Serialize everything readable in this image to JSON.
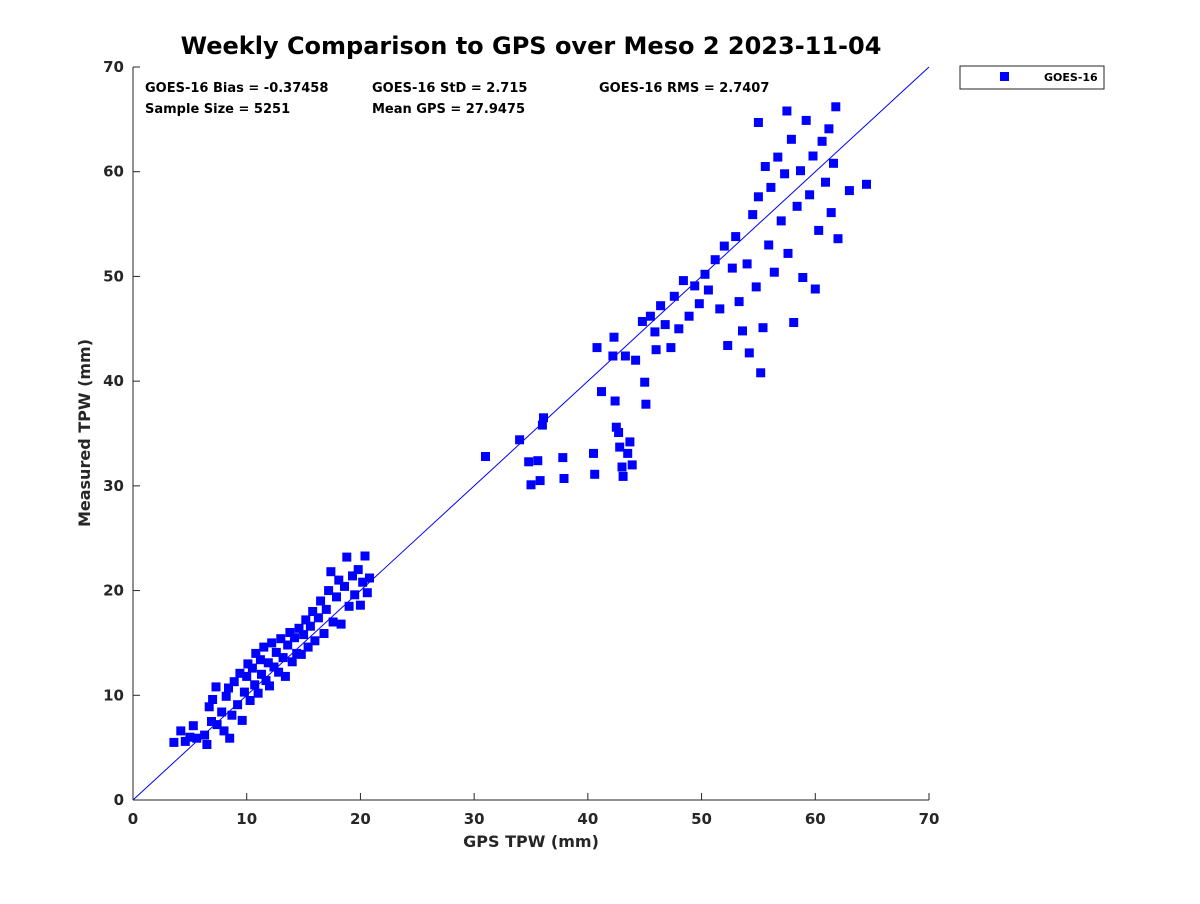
{
  "chart_data": {
    "type": "scatter",
    "title": "Weekly Comparison to GPS over Meso 2 2023-11-04",
    "xlabel": "GPS TPW (mm)",
    "ylabel": "Measured TPW (mm)",
    "xlim": [
      0,
      70
    ],
    "ylim": [
      0,
      70
    ],
    "xticks": [
      "0",
      "10",
      "20",
      "30",
      "40",
      "50",
      "60",
      "70"
    ],
    "yticks": [
      "0",
      "10",
      "20",
      "30",
      "40",
      "50",
      "60",
      "70"
    ],
    "grid": false,
    "legend_position": "outside-top-right",
    "stats": [
      "GOES-16 Bias = -0.37458",
      "GOES-16 StD = 2.715",
      "GOES-16 RMS = 2.7407",
      "Sample Size = 5251",
      "Mean GPS = 27.9475"
    ],
    "reference_line": {
      "from": [
        0,
        0
      ],
      "to": [
        70,
        70
      ],
      "color": "#0000ff"
    },
    "series": [
      {
        "name": "GOES-16",
        "marker": "square",
        "color": "#0000ff",
        "points": [
          [
            3.6,
            5.5
          ],
          [
            4.2,
            6.6
          ],
          [
            4.6,
            5.6
          ],
          [
            5.0,
            6.0
          ],
          [
            5.3,
            7.1
          ],
          [
            5.6,
            5.9
          ],
          [
            6.3,
            6.2
          ],
          [
            6.5,
            5.3
          ],
          [
            6.7,
            8.9
          ],
          [
            6.9,
            7.5
          ],
          [
            7.0,
            9.6
          ],
          [
            7.3,
            10.8
          ],
          [
            7.4,
            7.2
          ],
          [
            7.8,
            8.4
          ],
          [
            8.0,
            6.6
          ],
          [
            8.2,
            9.9
          ],
          [
            8.4,
            10.7
          ],
          [
            8.5,
            5.9
          ],
          [
            8.7,
            8.1
          ],
          [
            8.9,
            11.3
          ],
          [
            9.2,
            9.1
          ],
          [
            9.4,
            12.1
          ],
          [
            9.6,
            7.6
          ],
          [
            9.8,
            10.3
          ],
          [
            10.0,
            11.8
          ],
          [
            10.1,
            13.0
          ],
          [
            10.3,
            9.5
          ],
          [
            10.5,
            12.6
          ],
          [
            10.7,
            11.0
          ],
          [
            10.8,
            14.0
          ],
          [
            11.0,
            10.2
          ],
          [
            11.2,
            13.4
          ],
          [
            11.3,
            12.0
          ],
          [
            11.5,
            14.6
          ],
          [
            11.7,
            11.4
          ],
          [
            11.9,
            13.1
          ],
          [
            12.0,
            10.9
          ],
          [
            12.2,
            15.0
          ],
          [
            12.4,
            12.7
          ],
          [
            12.6,
            14.1
          ],
          [
            12.8,
            12.2
          ],
          [
            13.0,
            15.4
          ],
          [
            13.2,
            13.6
          ],
          [
            13.4,
            11.8
          ],
          [
            13.6,
            14.8
          ],
          [
            13.8,
            16.0
          ],
          [
            14.0,
            13.2
          ],
          [
            14.2,
            15.5
          ],
          [
            14.4,
            14.0
          ],
          [
            14.6,
            16.4
          ],
          [
            14.8,
            13.9
          ],
          [
            15.0,
            15.8
          ],
          [
            15.2,
            17.2
          ],
          [
            15.4,
            14.6
          ],
          [
            15.6,
            16.6
          ],
          [
            15.8,
            18.0
          ],
          [
            16.0,
            15.2
          ],
          [
            16.3,
            17.4
          ],
          [
            16.5,
            19.0
          ],
          [
            16.8,
            15.9
          ],
          [
            17.0,
            18.2
          ],
          [
            17.2,
            20.0
          ],
          [
            17.4,
            21.8
          ],
          [
            17.6,
            17.0
          ],
          [
            17.9,
            19.4
          ],
          [
            18.1,
            21.0
          ],
          [
            18.3,
            16.8
          ],
          [
            18.6,
            20.4
          ],
          [
            18.8,
            23.2
          ],
          [
            19.0,
            18.5
          ],
          [
            19.3,
            21.4
          ],
          [
            19.5,
            19.6
          ],
          [
            19.8,
            22.0
          ],
          [
            20.0,
            18.6
          ],
          [
            20.2,
            20.8
          ],
          [
            20.4,
            23.3
          ],
          [
            20.6,
            19.8
          ],
          [
            20.8,
            21.2
          ],
          [
            31.0,
            32.8
          ],
          [
            34.0,
            34.4
          ],
          [
            34.8,
            32.3
          ],
          [
            35.0,
            30.1
          ],
          [
            35.6,
            32.4
          ],
          [
            35.8,
            30.5
          ],
          [
            36.0,
            35.8
          ],
          [
            36.1,
            36.5
          ],
          [
            37.8,
            32.7
          ],
          [
            37.9,
            30.7
          ],
          [
            40.5,
            33.1
          ],
          [
            40.6,
            31.1
          ],
          [
            40.8,
            43.2
          ],
          [
            41.2,
            39.0
          ],
          [
            42.2,
            42.4
          ],
          [
            42.3,
            44.2
          ],
          [
            42.4,
            38.1
          ],
          [
            42.5,
            35.6
          ],
          [
            42.7,
            35.1
          ],
          [
            42.8,
            33.7
          ],
          [
            43.0,
            31.8
          ],
          [
            43.1,
            30.9
          ],
          [
            43.3,
            42.4
          ],
          [
            43.5,
            33.1
          ],
          [
            43.7,
            34.2
          ],
          [
            43.9,
            32.0
          ],
          [
            44.2,
            42.0
          ],
          [
            44.8,
            45.7
          ],
          [
            45.0,
            39.9
          ],
          [
            45.1,
            37.8
          ],
          [
            45.5,
            46.2
          ],
          [
            45.9,
            44.7
          ],
          [
            46.0,
            43.0
          ],
          [
            46.4,
            47.2
          ],
          [
            46.8,
            45.4
          ],
          [
            47.3,
            43.2
          ],
          [
            47.6,
            48.1
          ],
          [
            48.0,
            45.0
          ],
          [
            48.4,
            49.6
          ],
          [
            48.9,
            46.2
          ],
          [
            49.4,
            49.1
          ],
          [
            49.8,
            47.4
          ],
          [
            50.3,
            50.2
          ],
          [
            50.6,
            48.7
          ],
          [
            51.2,
            51.6
          ],
          [
            51.6,
            46.9
          ],
          [
            52.0,
            52.9
          ],
          [
            52.3,
            43.4
          ],
          [
            52.7,
            50.8
          ],
          [
            53.0,
            53.8
          ],
          [
            53.3,
            47.6
          ],
          [
            53.6,
            44.8
          ],
          [
            54.0,
            51.2
          ],
          [
            54.2,
            42.7
          ],
          [
            54.5,
            55.9
          ],
          [
            54.8,
            49.0
          ],
          [
            55.0,
            57.6
          ],
          [
            55.2,
            40.8
          ],
          [
            55.4,
            45.1
          ],
          [
            55.6,
            60.5
          ],
          [
            55.9,
            53.0
          ],
          [
            56.1,
            58.5
          ],
          [
            56.4,
            50.4
          ],
          [
            56.7,
            61.4
          ],
          [
            57.0,
            55.3
          ],
          [
            57.3,
            59.8
          ],
          [
            57.6,
            52.2
          ],
          [
            57.9,
            63.1
          ],
          [
            58.1,
            45.6
          ],
          [
            58.4,
            56.7
          ],
          [
            58.7,
            60.1
          ],
          [
            58.9,
            49.9
          ],
          [
            59.2,
            64.9
          ],
          [
            59.5,
            57.8
          ],
          [
            59.8,
            61.5
          ],
          [
            60.0,
            48.8
          ],
          [
            60.3,
            54.4
          ],
          [
            60.6,
            62.9
          ],
          [
            60.9,
            59.0
          ],
          [
            61.2,
            64.1
          ],
          [
            61.4,
            56.1
          ],
          [
            61.6,
            60.8
          ],
          [
            61.8,
            66.2
          ],
          [
            62.0,
            53.6
          ],
          [
            63.0,
            58.2
          ],
          [
            64.5,
            58.8
          ],
          [
            57.5,
            65.8
          ],
          [
            55.0,
            64.7
          ]
        ]
      }
    ]
  }
}
